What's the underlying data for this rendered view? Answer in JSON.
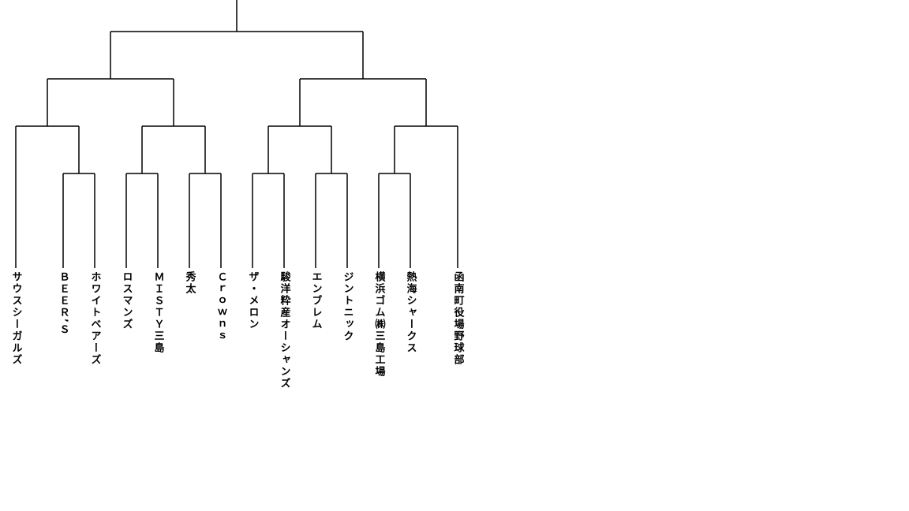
{
  "teams": [
    "サウスシーガルズ",
    "ＢＥＥＲ’Ｓ",
    "ホワイトベアーズ",
    "ロスマンズ",
    "ＭＩＳＴＹ三島",
    "秀太",
    "Ｃｒｏｗｎｓ",
    "ザ・メロン",
    "駿洋粋産オーシャンズ",
    "エンブレム",
    "ジントニック",
    "横浜ゴム㈱三島工場",
    "熱海シャークス",
    "函南町役場野球部"
  ]
}
